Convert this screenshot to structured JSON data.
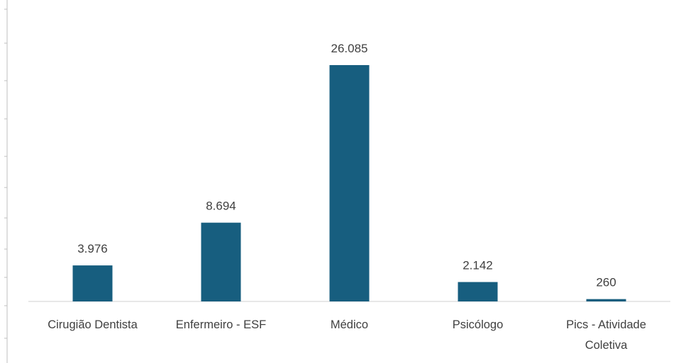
{
  "chart_data": {
    "type": "bar",
    "title": "",
    "xlabel": "",
    "ylabel": "",
    "categories": [
      [
        "Cirugião Dentista"
      ],
      [
        "Enfermeiro - ESF"
      ],
      [
        "Médico"
      ],
      [
        "Psicólogo"
      ],
      [
        "Pics - Atividade",
        "Coletiva"
      ]
    ],
    "values": [
      3976,
      8694,
      26085,
      2142,
      260
    ],
    "value_labels": [
      "3.976",
      "8.694",
      "26.085",
      "2.142",
      "260"
    ],
    "ylim": [
      0,
      30000
    ],
    "bar_color": "#175e7f",
    "grid": false,
    "legend": "none"
  }
}
